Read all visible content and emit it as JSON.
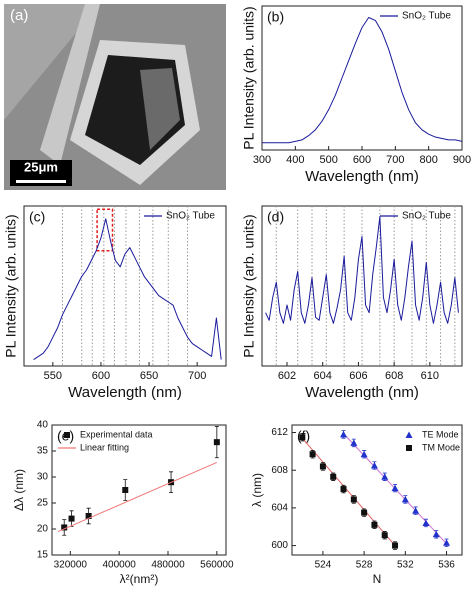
{
  "image": {
    "panel_label": "(a)",
    "scale_bar": "25μm"
  },
  "chart_data": [
    {
      "type": "line",
      "panel_label": "(b)",
      "xlabel": "Wavelength (nm)",
      "ylabel": "PL Intensity (arb. units)",
      "xlim": [
        300,
        900
      ],
      "xticks": [
        300,
        400,
        500,
        600,
        700,
        800,
        900
      ],
      "ylim": [
        0,
        100
      ],
      "legend": "upper right",
      "series": [
        {
          "name": "SnO₂ Tube",
          "color": "#1a1a9c",
          "x": [
            300,
            320,
            340,
            360,
            380,
            400,
            420,
            440,
            460,
            480,
            500,
            520,
            540,
            560,
            580,
            600,
            620,
            640,
            660,
            680,
            700,
            720,
            740,
            760,
            780,
            800,
            820,
            840,
            860,
            880,
            900
          ],
          "values": [
            5,
            5,
            5,
            5,
            5,
            6,
            7,
            10,
            14,
            20,
            28,
            38,
            50,
            62,
            74,
            85,
            92,
            90,
            82,
            70,
            55,
            40,
            28,
            19,
            14,
            11,
            9,
            8,
            7,
            7,
            6
          ]
        }
      ]
    },
    {
      "type": "line",
      "panel_label": "(c)",
      "xlabel": "Wavelength (nm)",
      "ylabel": "PL Intensity (arb. units)",
      "xlim": [
        520,
        730
      ],
      "xticks": [
        550,
        600,
        650,
        700
      ],
      "ylim": [
        0,
        100
      ],
      "legend": "upper right",
      "vlines": [
        560,
        580,
        591,
        603,
        614,
        626,
        640,
        654,
        670,
        690
      ],
      "highlight": {
        "color": "#e02020",
        "xlim": [
          596,
          612
        ],
        "ylim": [
          72,
          98
        ]
      },
      "series": [
        {
          "name": "SnO₂ Tube",
          "color": "#1a1a9c",
          "x": [
            530,
            535,
            540,
            545,
            550,
            555,
            560,
            565,
            570,
            575,
            580,
            585,
            590,
            595,
            600,
            605,
            610,
            615,
            620,
            625,
            630,
            635,
            640,
            645,
            650,
            655,
            660,
            665,
            670,
            675,
            680,
            685,
            690,
            695,
            700,
            705,
            710,
            715,
            720,
            725
          ],
          "values": [
            4,
            6,
            8,
            12,
            18,
            24,
            32,
            38,
            44,
            50,
            56,
            60,
            66,
            72,
            80,
            92,
            78,
            66,
            62,
            70,
            74,
            68,
            62,
            56,
            52,
            48,
            44,
            42,
            40,
            38,
            30,
            24,
            18,
            14,
            12,
            10,
            8,
            6,
            30,
            4
          ]
        }
      ]
    },
    {
      "type": "line",
      "panel_label": "(d)",
      "xlabel": "Wavelength (nm)",
      "ylabel": "PL Intensity (arb. units)",
      "xlim": [
        600.6,
        611.8
      ],
      "xticks": [
        602,
        604,
        606,
        608,
        610
      ],
      "ylim": [
        0,
        105
      ],
      "legend": "upper right",
      "vlines": [
        601.4,
        602.6,
        603.4,
        604.2,
        605.2,
        606.2,
        607.2,
        608.0,
        609.0,
        609.8,
        610.6,
        611.4
      ],
      "series": [
        {
          "name": "SnO₂ Tube",
          "color": "#1a1a9c",
          "x": [
            600.8,
            601.0,
            601.2,
            601.4,
            601.6,
            601.8,
            602.0,
            602.2,
            602.4,
            602.6,
            602.8,
            603.0,
            603.2,
            603.4,
            603.6,
            603.8,
            604.0,
            604.2,
            604.4,
            604.6,
            604.8,
            605.0,
            605.2,
            605.4,
            605.6,
            605.8,
            606.0,
            606.2,
            606.4,
            606.6,
            606.8,
            607.0,
            607.2,
            607.4,
            607.6,
            607.8,
            608.0,
            608.2,
            608.4,
            608.6,
            608.8,
            609.0,
            609.2,
            609.4,
            609.6,
            609.8,
            610.0,
            610.2,
            610.4,
            610.6,
            610.8,
            611.0,
            611.2,
            611.4,
            611.6
          ],
          "values": [
            35,
            30,
            45,
            55,
            35,
            28,
            40,
            30,
            50,
            62,
            35,
            28,
            40,
            58,
            32,
            30,
            45,
            60,
            35,
            28,
            38,
            50,
            72,
            35,
            30,
            45,
            70,
            85,
            40,
            35,
            60,
            78,
            98,
            45,
            35,
            50,
            70,
            40,
            30,
            45,
            65,
            82,
            40,
            30,
            45,
            68,
            40,
            28,
            40,
            55,
            35,
            28,
            40,
            58,
            35
          ]
        }
      ]
    },
    {
      "type": "scatter",
      "panel_label": "(e)",
      "xlabel": "λ²(nm²)",
      "ylabel": "Δλ (nm)",
      "xlim": [
        290000,
        575000
      ],
      "xticks": [
        320000,
        400000,
        480000,
        560000
      ],
      "ylim": [
        15,
        40
      ],
      "yticks": [
        15,
        20,
        25,
        30,
        35,
        40
      ],
      "legend": "upper left",
      "series": [
        {
          "name": "Experimental data",
          "color": "#111111",
          "marker": "square",
          "x": [
            310000,
            322000,
            350000,
            410000,
            485000,
            560000
          ],
          "values": [
            20.3,
            22,
            22.5,
            27.5,
            29,
            36.7
          ],
          "errors": [
            1.5,
            1.5,
            1.5,
            2,
            2,
            3
          ]
        },
        {
          "name": "Linear fitting",
          "color": "#f07878",
          "x": [
            300000,
            560000
          ],
          "values": [
            19.5,
            32.8
          ]
        }
      ]
    },
    {
      "type": "scatter",
      "panel_label": "(f)",
      "xlabel": "N",
      "ylabel": "λ (nm)",
      "xlim": [
        521,
        537.5
      ],
      "xticks": [
        524,
        528,
        532,
        536
      ],
      "ylim": [
        599,
        612.8
      ],
      "yticks": [
        600,
        604,
        608,
        612
      ],
      "legend": "upper right",
      "series": [
        {
          "name": "TE Mode",
          "color": "#2233cc",
          "marker": "triangle",
          "x": [
            526,
            527,
            528,
            529,
            530,
            531,
            532,
            533,
            534,
            535,
            536
          ],
          "values": [
            611.8,
            610.9,
            609.7,
            608.5,
            607.3,
            606.1,
            604.9,
            603.7,
            602.4,
            601.2,
            600.3
          ],
          "errors": [
            0.4,
            0.4,
            0.4,
            0.4,
            0.4,
            0.4,
            0.4,
            0.4,
            0.4,
            0.4,
            0.4
          ]
        },
        {
          "name": "TM Mode",
          "color": "#111111",
          "marker": "square",
          "x": [
            522,
            523,
            524,
            525,
            526,
            527,
            528,
            529,
            530,
            531
          ],
          "values": [
            611.5,
            609.7,
            608.4,
            607.3,
            606.0,
            604.9,
            603.5,
            602.2,
            601.1,
            600.0
          ],
          "errors": [
            0.4,
            0.4,
            0.4,
            0.4,
            0.4,
            0.4,
            0.4,
            0.4,
            0.4,
            0.4
          ]
        }
      ],
      "fits": [
        {
          "color": "#d070d0",
          "x": [
            526,
            536
          ],
          "values": [
            611.9,
            600.2
          ]
        },
        {
          "color": "#e06060",
          "x": [
            522,
            531
          ],
          "values": [
            611.4,
            600.0
          ]
        }
      ]
    }
  ]
}
